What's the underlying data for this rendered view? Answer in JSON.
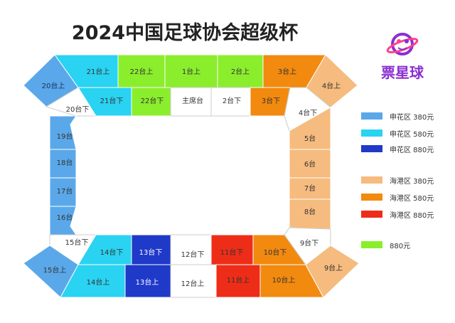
{
  "title": "2024中国足球协会超级杯",
  "logo": {
    "text": "票星球",
    "color": "#8a2fd0"
  },
  "legend": [
    {
      "label": "申花区 380元",
      "color": "#5aa8ea"
    },
    {
      "label": "申花区 580元",
      "color": "#29d3f1"
    },
    {
      "label": "申花区 880元",
      "color": "#1f39c9"
    },
    {
      "label": "海港区 380元",
      "color": "#f6bb7e"
    },
    {
      "label": "海港区 580元",
      "color": "#f28a0f"
    },
    {
      "label": "海港区 880元",
      "color": "#ee2d18"
    },
    {
      "label": "880元",
      "color": "#8aee2c"
    }
  ],
  "sections": {
    "s20u": "20台上",
    "s21u": "21台上",
    "s22u": "22台上",
    "s1u": "1台上",
    "s2u": "2台上",
    "s3u": "3台上",
    "s4u": "4台上",
    "s20d": "20台下",
    "s21d": "21台下",
    "s22d": "22台下",
    "main": "主席台",
    "s2d": "2台下",
    "s3d": "3台下",
    "s4d": "4台下",
    "s19": "19台",
    "s18": "18台",
    "s17": "17台",
    "s16": "16台",
    "s5": "5台",
    "s6": "6台",
    "s7": "7台",
    "s8": "8台",
    "s15d": "15台下",
    "s14d": "14台下",
    "s13d": "13台下",
    "s12d": "12台下",
    "s11d": "11台下",
    "s10d": "10台下",
    "s9d": "9台下",
    "s15u": "15台上",
    "s14u": "14台上",
    "s13u": "13台上",
    "s12u": "12台上",
    "s11u": "11台上",
    "s10u": "10台上",
    "s9u": "9台上"
  }
}
